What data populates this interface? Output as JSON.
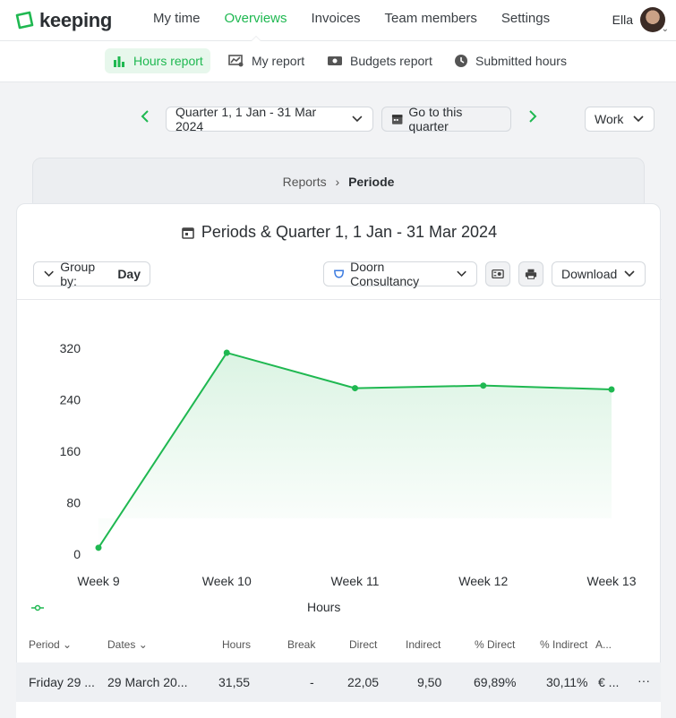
{
  "app": {
    "name": "keeping"
  },
  "nav": [
    {
      "label": "My time"
    },
    {
      "label": "Overviews"
    },
    {
      "label": "Invoices"
    },
    {
      "label": "Team members"
    },
    {
      "label": "Settings"
    }
  ],
  "user": {
    "name": "Ella"
  },
  "subnav": [
    {
      "label": "Hours report",
      "icon": "bar-chart-icon"
    },
    {
      "label": "My report",
      "icon": "person-chart-icon"
    },
    {
      "label": "Budgets report",
      "icon": "money-icon"
    },
    {
      "label": "Submitted hours",
      "icon": "clock-icon"
    }
  ],
  "period": {
    "label": "Quarter 1, 1 Jan - 31 Mar 2024",
    "goto_label": "Go to this quarter",
    "type_label": "Work"
  },
  "breadcrumb": {
    "parent": "Reports",
    "separator": "›",
    "current": "Periode"
  },
  "report": {
    "title": "Periods & Quarter 1, 1 Jan - 31 Mar 2024",
    "group_by_label": "Group by:",
    "group_by_value": "Day",
    "client": "Doorn Consultancy",
    "download_label": "Download"
  },
  "chart_data": {
    "type": "area",
    "categories": [
      "Week 9",
      "Week 10",
      "Week 11",
      "Week 12",
      "Week 13"
    ],
    "series": [
      {
        "name": "Hours",
        "values": [
          10,
          313,
          258,
          262,
          256
        ]
      }
    ],
    "yticks": [
      0,
      80,
      160,
      240,
      320
    ],
    "ylim": [
      0,
      320
    ],
    "legend": "bottom",
    "color": "#1fb851"
  },
  "table": {
    "columns": [
      "Period",
      "Dates",
      "Hours",
      "Break",
      "Direct",
      "Indirect",
      "% Direct",
      "% Indirect",
      "A..."
    ],
    "rows": [
      [
        "Friday 29 ...",
        "29 March 20...",
        "31,55",
        "-",
        "22,05",
        "9,50",
        "69,89%",
        "30,11%",
        "€ ..."
      ]
    ],
    "row_more": "···"
  }
}
